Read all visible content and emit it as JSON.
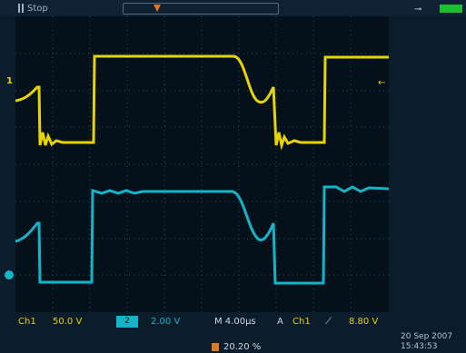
{
  "status": {
    "acquisition_state": "Stop"
  },
  "trigger": {
    "marker_label": "T",
    "position_marker": "trigger-position-marker"
  },
  "channels": {
    "ch1": {
      "label": "Ch1",
      "scale": "50.0 V",
      "color": "#e8d400",
      "marker": "1"
    },
    "ch2": {
      "label": "2",
      "scale": "2.00 V",
      "color": "#14b4c8"
    }
  },
  "timebase": {
    "scale": "M 4.00µs"
  },
  "trigger_readout": {
    "prefix": "A",
    "source": "Ch1",
    "slope_icon": "rising-edge-icon",
    "slope_glyph": "⟋",
    "level": "8.80 V"
  },
  "trigger_position": {
    "value": "20.20 %"
  },
  "datetime": {
    "date": "20 Sep 2007",
    "time": "15:43:53"
  },
  "colors": {
    "background": "#0b1c2b",
    "screen": "#04101a",
    "graticule": "#2e4a60",
    "ch1": "#e8d400",
    "ch2": "#14b4c8",
    "accent": "#e07a1e",
    "battery": "#1cbf2e"
  },
  "icons": [
    "run-stop-icon",
    "trigger-position-marker",
    "battery-icon",
    "trigger-level-arrow-icon"
  ]
}
